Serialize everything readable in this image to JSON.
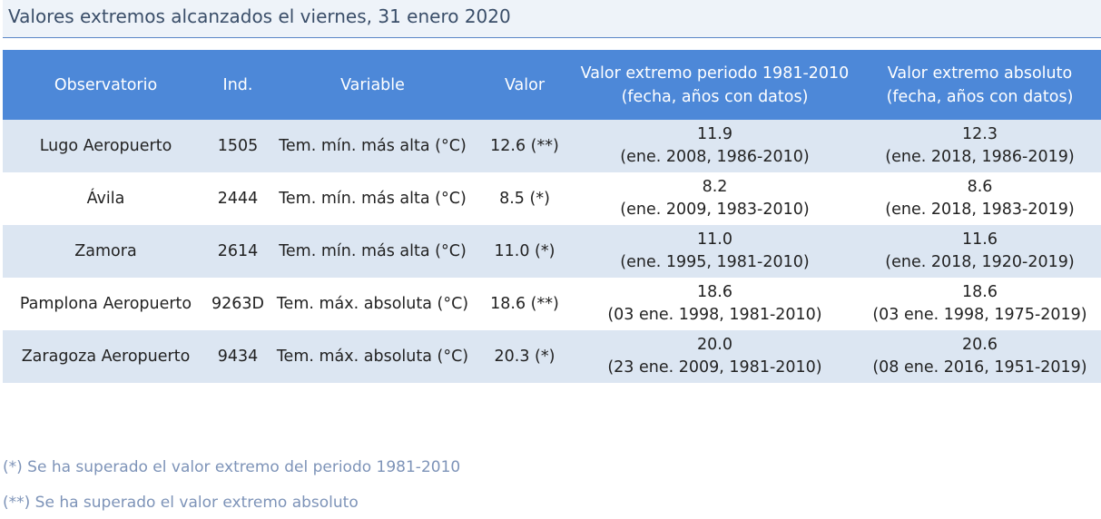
{
  "title": "Valores extremos alcanzados el viernes, 31 enero 2020",
  "headers": {
    "observatorio": "Observatorio",
    "ind": "Ind.",
    "variable": "Variable",
    "valor": "Valor",
    "periodo_line1": "Valor extremo periodo 1981-2010",
    "periodo_line2": "(fecha, años con datos)",
    "absoluto_line1": "Valor extremo absoluto",
    "absoluto_line2": "(fecha, años con datos)"
  },
  "rows": [
    {
      "observatorio": "Lugo Aeropuerto",
      "ind": "1505",
      "variable": "Tem. mín. más alta (°C)",
      "valor": "12.6 (**)",
      "periodo_valor": "11.9",
      "periodo_fecha": "(ene. 2008, 1986-2010)",
      "absoluto_valor": "12.3",
      "absoluto_fecha": "(ene. 2018, 1986-2019)"
    },
    {
      "observatorio": "Ávila",
      "ind": "2444",
      "variable": "Tem. mín. más alta (°C)",
      "valor": "8.5 (*)",
      "periodo_valor": "8.2",
      "periodo_fecha": "(ene. 2009, 1983-2010)",
      "absoluto_valor": "8.6",
      "absoluto_fecha": "(ene. 2018, 1983-2019)"
    },
    {
      "observatorio": "Zamora",
      "ind": "2614",
      "variable": "Tem. mín. más alta (°C)",
      "valor": "11.0 (*)",
      "periodo_valor": "11.0",
      "periodo_fecha": "(ene. 1995, 1981-2010)",
      "absoluto_valor": "11.6",
      "absoluto_fecha": "(ene. 2018, 1920-2019)"
    },
    {
      "observatorio": "Pamplona Aeropuerto",
      "ind": "9263D",
      "variable": "Tem. máx. absoluta (°C)",
      "valor": "18.6 (**)",
      "periodo_valor": "18.6",
      "periodo_fecha": "(03 ene. 1998, 1981-2010)",
      "absoluto_valor": "18.6",
      "absoluto_fecha": "(03 ene. 1998, 1975-2019)"
    },
    {
      "observatorio": "Zaragoza Aeropuerto",
      "ind": "9434",
      "variable": "Tem. máx. absoluta (°C)",
      "valor": "20.3 (*)",
      "periodo_valor": "20.0",
      "periodo_fecha": "(23 ene. 2009, 1981-2010)",
      "absoluto_valor": "20.6",
      "absoluto_fecha": "(08 ene. 2016, 1951-2019)"
    }
  ],
  "notes": {
    "single": "(*) Se ha superado el valor extremo del periodo 1981-2010",
    "double": "(**) Se ha superado el valor extremo absoluto"
  },
  "colors": {
    "header_bg": "#4d88d8",
    "row_band": "#dce6f2",
    "title_bg": "#eef3f9",
    "title_text": "#3a4e69",
    "note_text": "#7d93b8"
  }
}
